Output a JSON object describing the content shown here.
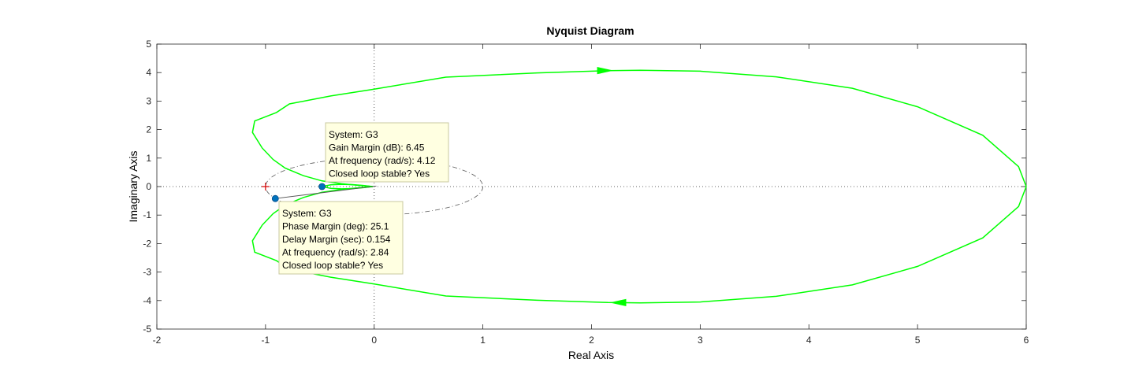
{
  "chart_data": {
    "type": "line",
    "title": "Nyquist Diagram",
    "xlabel": "Real Axis",
    "ylabel": "Imaginary Axis",
    "xlim": [
      -2,
      6
    ],
    "ylim": [
      -5,
      5
    ],
    "xticks": [
      "-2",
      "-1",
      "0",
      "1",
      "2",
      "3",
      "4",
      "5",
      "6"
    ],
    "yticks": [
      "5",
      "4",
      "3",
      "2",
      "1",
      "0",
      "-1",
      "-2",
      "-3",
      "-4",
      "-5"
    ],
    "grid": false,
    "reference_lines": [
      "x=0",
      "y=0"
    ],
    "critical_point": {
      "x": -1,
      "y": 0
    },
    "series": [
      {
        "color": "#00ff00",
        "upper_branch": {
          "x": [
            6.0,
            5.93,
            5.6,
            5.0,
            4.4,
            3.7,
            3.0,
            2.45,
            2.15,
            1.5,
            0.66,
            0.0,
            -0.4,
            -0.78,
            -0.9,
            -1.1,
            -1.12,
            -1.03,
            -0.93,
            -0.82,
            -0.65,
            -0.48,
            -0.3,
            -0.16,
            -0.07,
            -0.01
          ],
          "y": [
            0.0,
            0.7,
            1.8,
            2.8,
            3.45,
            3.85,
            4.05,
            4.08,
            4.07,
            3.99,
            3.84,
            3.42,
            3.18,
            2.9,
            2.6,
            2.3,
            1.9,
            1.35,
            0.95,
            0.65,
            0.38,
            0.2,
            0.1,
            0.05,
            0.02,
            0.0
          ]
        },
        "inner_loop": {
          "x": [
            -0.48,
            -0.4,
            -0.3,
            -0.2,
            -0.1,
            -0.02
          ],
          "y": [
            0.0,
            0.06,
            0.08,
            0.07,
            0.04,
            0.0
          ]
        },
        "arrows": [
          {
            "x": 2.12,
            "y": 4.07,
            "direction": "right"
          },
          {
            "x": 2.25,
            "y": -4.07,
            "direction": "left"
          }
        ]
      }
    ],
    "unit_circle": {
      "center": [
        0,
        0
      ],
      "radius": 1
    },
    "datatips": [
      {
        "point": {
          "x": -0.48,
          "y": 0
        },
        "lines": [
          "System: G3",
          "Gain Margin (dB): 6.45",
          "At frequency (rad/s): 4.12",
          "Closed loop stable? Yes"
        ]
      },
      {
        "point": {
          "x": -0.91,
          "y": -0.42
        },
        "lines": [
          "System: G3",
          "Phase Margin (deg): 25.1",
          "Delay Margin (sec): 0.154",
          "At frequency (rad/s): 2.84",
          "Closed loop stable? Yes"
        ]
      }
    ],
    "colors": {
      "curve": "#00ff00",
      "marker": "#0072bd",
      "critical": "#d40000",
      "tip_bg": "#ffffe1",
      "tip_border": "#c8c8a0"
    }
  }
}
